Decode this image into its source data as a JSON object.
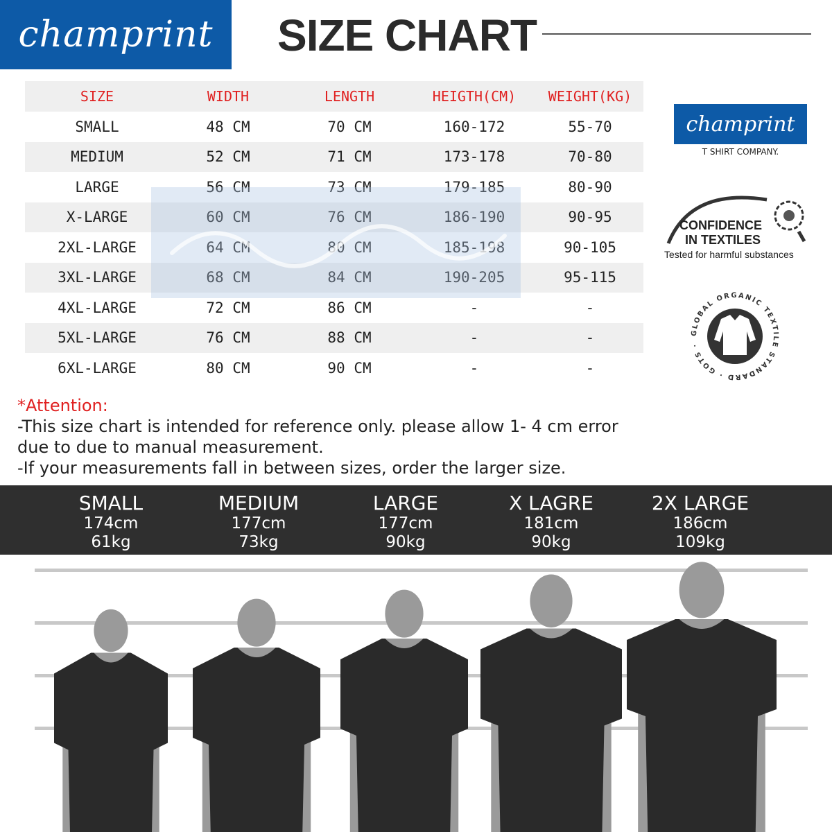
{
  "brand": {
    "logo_text": "champrint",
    "tagline": "T SHIRT COMPANY."
  },
  "title": "SIZE CHART",
  "table": {
    "headers": [
      "SIZE",
      "WIDTH",
      "LENGTH",
      "HEIGTH(CM)",
      "WEIGHT(KG)"
    ],
    "rows": [
      [
        "SMALL",
        "48 CM",
        "70 CM",
        "160-172",
        "55-70"
      ],
      [
        "MEDIUM",
        "52 CM",
        "71 CM",
        "173-178",
        "70-80"
      ],
      [
        "LARGE",
        "56 CM",
        "73 CM",
        "179-185",
        "80-90"
      ],
      [
        "X-LARGE",
        "60 CM",
        "76 CM",
        "186-190",
        "90-95"
      ],
      [
        "2XL-LARGE",
        "64 CM",
        "80 CM",
        "185-198",
        "90-105"
      ],
      [
        "3XL-LARGE",
        "68 CM",
        "84 CM",
        "190-205",
        "95-115"
      ],
      [
        "4XL-LARGE",
        "72 CM",
        "86 CM",
        "-",
        "-"
      ],
      [
        "5XL-LARGE",
        "76 CM",
        "88 CM",
        "-",
        "-"
      ],
      [
        "6XL-LARGE",
        "80 CM",
        "90 CM",
        "-",
        "-"
      ]
    ]
  },
  "certs": {
    "cit_line1": "CONFIDENCE",
    "cit_line2": "IN TEXTILES",
    "cit_line3": "Tested for harmful substances",
    "gots_text": "GLOBAL ORGANIC TEXTILE STANDARD · GOTS ·"
  },
  "attention": {
    "label": "*Attention:",
    "line1": "-This size chart is intended for reference only. please allow 1- 4 cm error",
    "line2": "due to due to manual measurement.",
    "line3": "-If your measurements fall in between sizes, order the larger size."
  },
  "models": [
    {
      "size": "SMALL",
      "height": "174cm",
      "weight": "61kg"
    },
    {
      "size": "MEDIUM",
      "height": "177cm",
      "weight": "73kg"
    },
    {
      "size": "LARGE",
      "height": "177cm",
      "weight": "90kg"
    },
    {
      "size": "X LAGRE",
      "height": "181cm",
      "weight": "90kg"
    },
    {
      "size": "2X LARGE",
      "height": "186cm",
      "weight": "109kg"
    }
  ],
  "colors": {
    "brand_blue": "#0d5aa7",
    "header_red": "#e02020",
    "band": "#2f2f2f",
    "silhouette": "#9a9a9a",
    "shirt": "#2a2a2a"
  }
}
